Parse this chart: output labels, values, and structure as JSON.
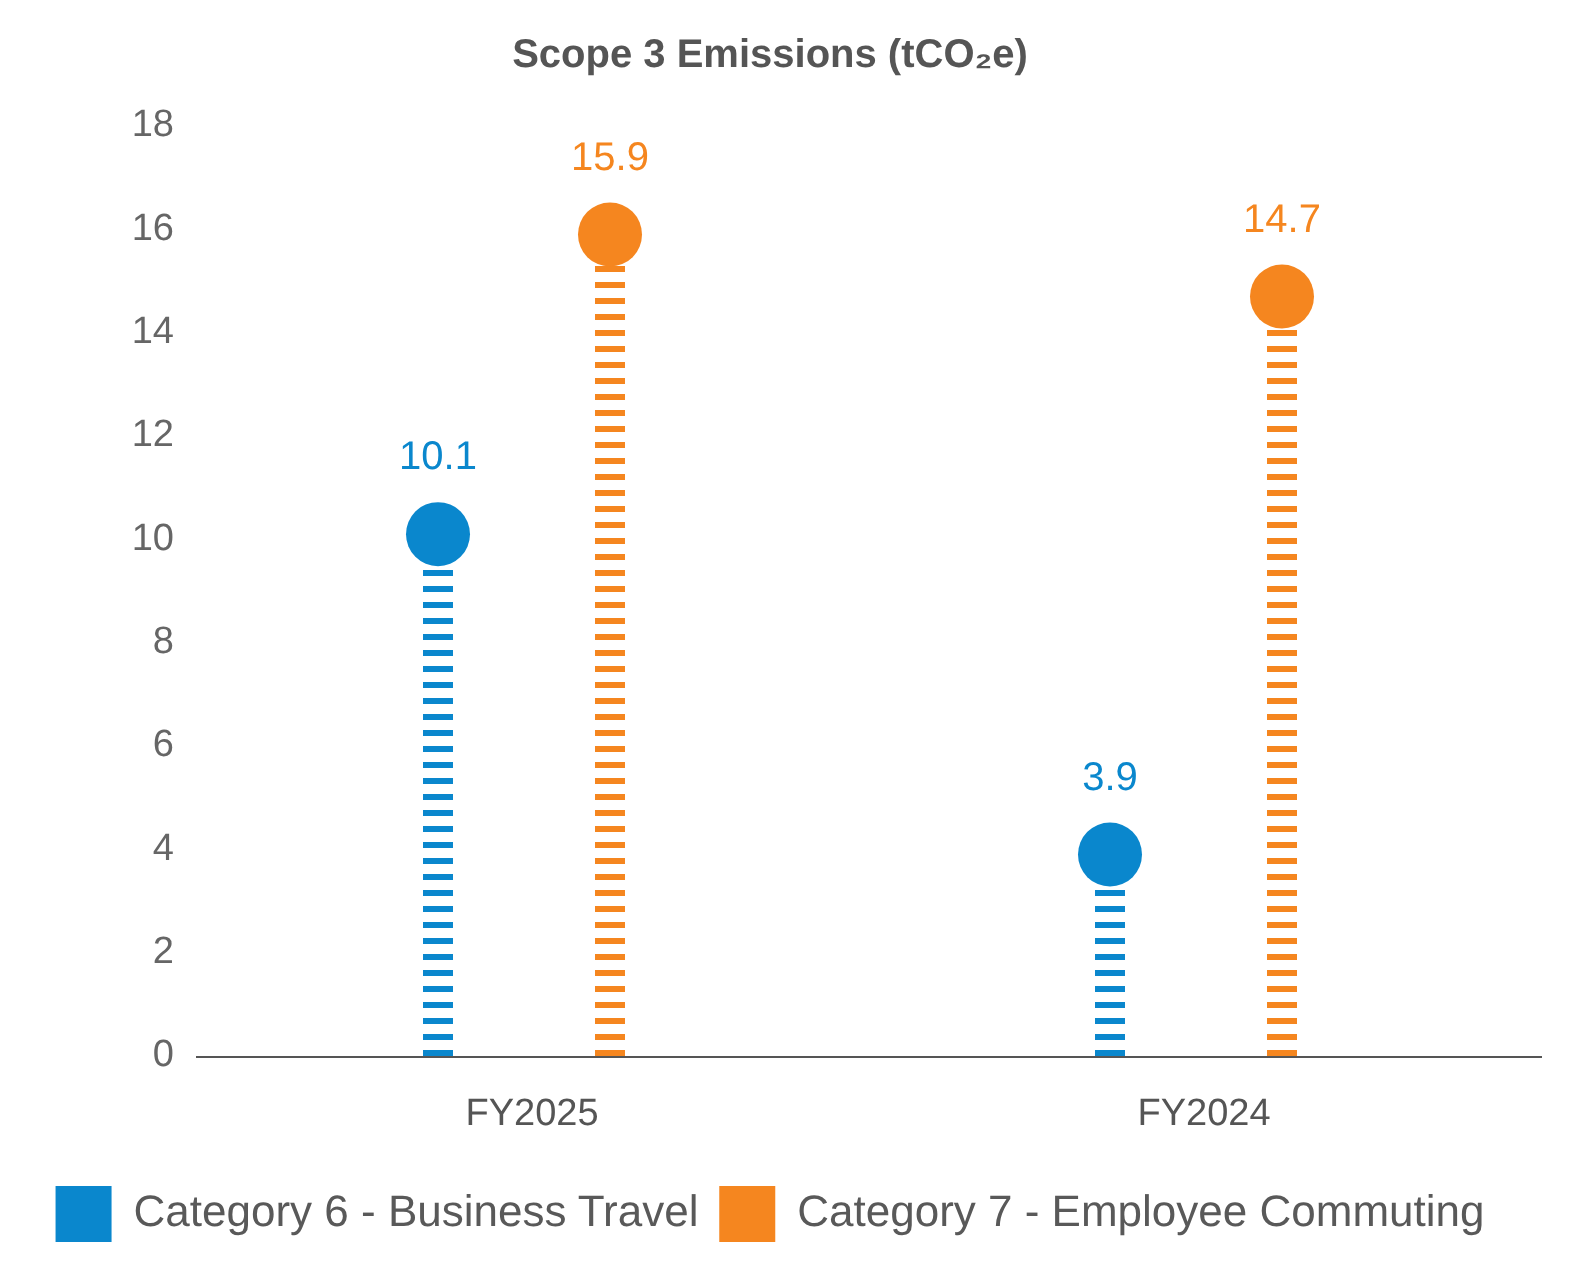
{
  "chart_data": {
    "type": "lollipop",
    "title": "Scope 3 Emissions (tCO₂e)",
    "categories": [
      "FY2025",
      "FY2024"
    ],
    "series": [
      {
        "name": "Category 6 - Business Travel",
        "color": "#0a87cd",
        "values": [
          10.1,
          3.9
        ]
      },
      {
        "name": "Category 7 - Employee Commuting",
        "color": "#f5861f",
        "values": [
          15.9,
          14.7
        ]
      }
    ],
    "ylim": [
      0,
      18
    ],
    "yticks": [
      0,
      2,
      4,
      6,
      8,
      10,
      12,
      14,
      16,
      18
    ],
    "legend": "bottom",
    "marker": "circle",
    "line_style": "dashed",
    "data_labels": true
  }
}
